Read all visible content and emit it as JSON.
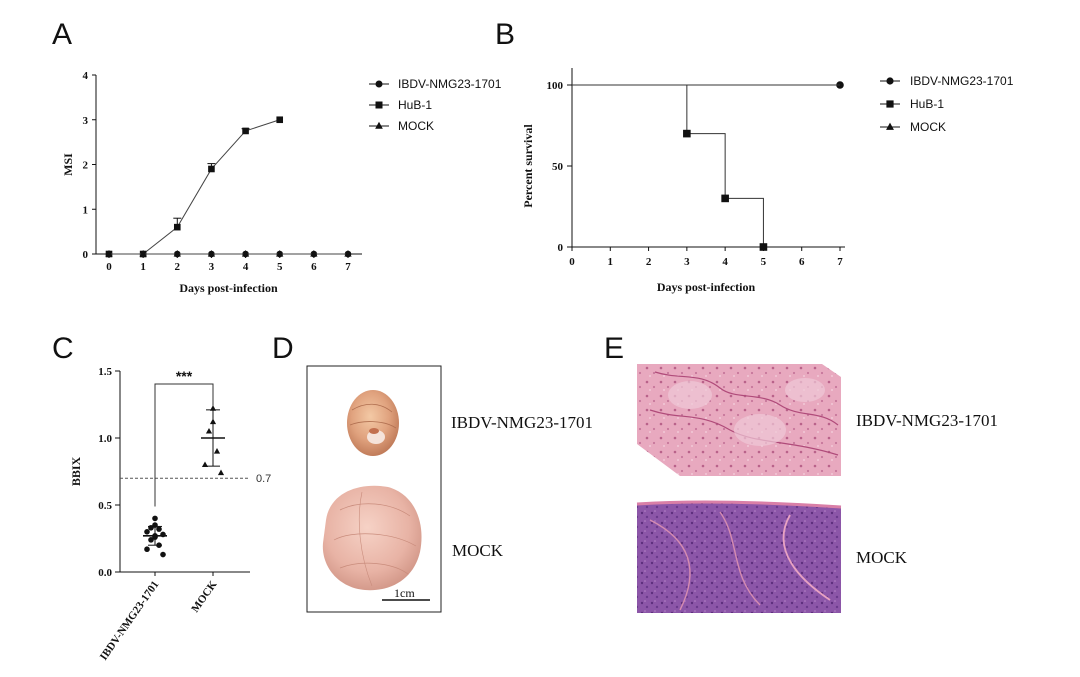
{
  "panels": {
    "A": "A",
    "B": "B",
    "C": "C",
    "D": "D",
    "E": "E"
  },
  "chart_data": [
    {
      "id": "A",
      "type": "line",
      "title": "",
      "xlabel": "Days post-infection",
      "ylabel": "MSI",
      "xlim": [
        0,
        7
      ],
      "ylim": [
        0,
        4
      ],
      "xticks": [
        "0",
        "1",
        "2",
        "3",
        "4",
        "5",
        "6",
        "7"
      ],
      "yticks": [
        "0",
        "1",
        "2",
        "3",
        "4"
      ],
      "legend_position": "right",
      "series": [
        {
          "name": "IBDV-NMG23-1701",
          "marker": "circle",
          "x": [
            0,
            1,
            2,
            3,
            4,
            5,
            6,
            7
          ],
          "y": [
            0,
            0,
            0,
            0,
            0,
            0,
            0,
            0
          ]
        },
        {
          "name": "HuB-1",
          "marker": "square",
          "x": [
            0,
            1,
            2,
            3,
            4,
            5
          ],
          "y": [
            0,
            0,
            0.6,
            1.9,
            2.75,
            3.0
          ],
          "err": [
            0,
            0,
            0.2,
            0.12,
            0.05,
            0
          ]
        },
        {
          "name": "MOCK",
          "marker": "triangle",
          "x": [
            0,
            1,
            2,
            3,
            4,
            5,
            6,
            7
          ],
          "y": [
            0,
            0,
            0,
            0,
            0,
            0,
            0,
            0
          ]
        }
      ]
    },
    {
      "id": "B",
      "type": "line",
      "subtype": "survival-step",
      "title": "",
      "xlabel": "Days post-infection",
      "ylabel": "Percent survival",
      "xlim": [
        0,
        7
      ],
      "ylim": [
        0,
        100
      ],
      "xticks": [
        "0",
        "1",
        "2",
        "3",
        "4",
        "5",
        "6",
        "7"
      ],
      "yticks": [
        "0",
        "50",
        "100"
      ],
      "legend_position": "right",
      "series": [
        {
          "name": "IBDV-NMG23-1701",
          "marker": "circle",
          "x": [
            0,
            7
          ],
          "y": [
            100,
            100
          ],
          "markers_at": [
            [
              7,
              100
            ]
          ]
        },
        {
          "name": "HuB-1",
          "marker": "square",
          "x": [
            0,
            3,
            3,
            4,
            4,
            5,
            5
          ],
          "y": [
            100,
            100,
            70,
            70,
            30,
            30,
            0
          ],
          "markers_at": [
            [
              3,
              70
            ],
            [
              4,
              30
            ],
            [
              5,
              0
            ]
          ]
        },
        {
          "name": "MOCK",
          "marker": "triangle",
          "x": [
            0,
            7
          ],
          "y": [
            100,
            100
          ],
          "markers_at": []
        }
      ]
    },
    {
      "id": "C",
      "type": "scatter",
      "title": "",
      "xlabel": "",
      "ylabel": "BBIX",
      "ylim": [
        0,
        1.5
      ],
      "yticks": [
        "0.0",
        "0.5",
        "1.0",
        "1.5"
      ],
      "categories": [
        "IBDV-NMG23-1701",
        "MOCK"
      ],
      "reference_line": {
        "value": 0.7,
        "label": "0.7"
      },
      "significance": "***",
      "series": [
        {
          "name": "IBDV-NMG23-1701",
          "marker": "circle",
          "points": [
            0.4,
            0.35,
            0.33,
            0.32,
            0.3,
            0.28,
            0.27,
            0.26,
            0.24,
            0.2,
            0.17,
            0.13
          ],
          "mean": 0.27,
          "sd": 0.07
        },
        {
          "name": "MOCK",
          "marker": "triangle",
          "points": [
            1.22,
            1.12,
            1.05,
            0.9,
            0.8,
            0.74
          ],
          "mean": 1.0,
          "sd": 0.21
        }
      ]
    }
  ],
  "photos_D": {
    "top_label": "IBDV-NMG23-1701",
    "bottom_label": "MOCK",
    "scale_label": "1cm"
  },
  "photos_E": {
    "top_label": "IBDV-NMG23-1701",
    "bottom_label": "MOCK"
  },
  "colors": {
    "ink": "#111111",
    "tissue_light": "#d9a89b",
    "tissue_pink": "#e7b6ab",
    "he_pink": "#d6839f",
    "he_purple": "#7d4a98"
  }
}
